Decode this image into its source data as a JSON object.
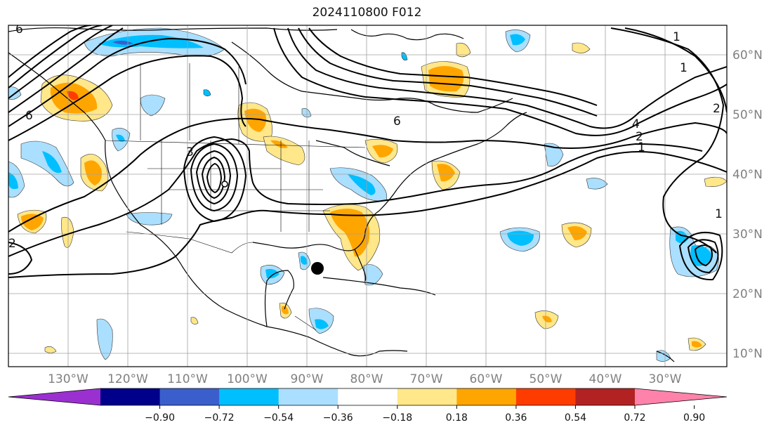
{
  "title": "2024110800 F012",
  "map": {
    "lon_labels": [
      "130°W",
      "120°W",
      "110°W",
      "100°W",
      "90°W",
      "80°W",
      "70°W",
      "60°W",
      "50°W",
      "40°W",
      "30°W"
    ],
    "lat_labels": [
      "60°N",
      "50°N",
      "40°N",
      "30°N",
      "20°N",
      "10°N"
    ],
    "contour_labels": [
      "6",
      "6",
      "4",
      "3",
      "2",
      "2",
      "2",
      "1",
      "1",
      "1",
      "6",
      "1"
    ],
    "marker": "storm-center-dot"
  },
  "colorbar": {
    "ticks": [
      "−0.90",
      "−0.72",
      "−0.54",
      "−0.36",
      "−0.18",
      "0.18",
      "0.36",
      "0.54",
      "0.72",
      "0.90"
    ],
    "colors": [
      "#9b30d0",
      "#00008b",
      "#3a5fcd",
      "#00bfff",
      "#aadfff",
      "#ffffff",
      "#ffe78a",
      "#ffa500",
      "#ff3c00",
      "#b22222",
      "#ff82ab"
    ]
  }
}
